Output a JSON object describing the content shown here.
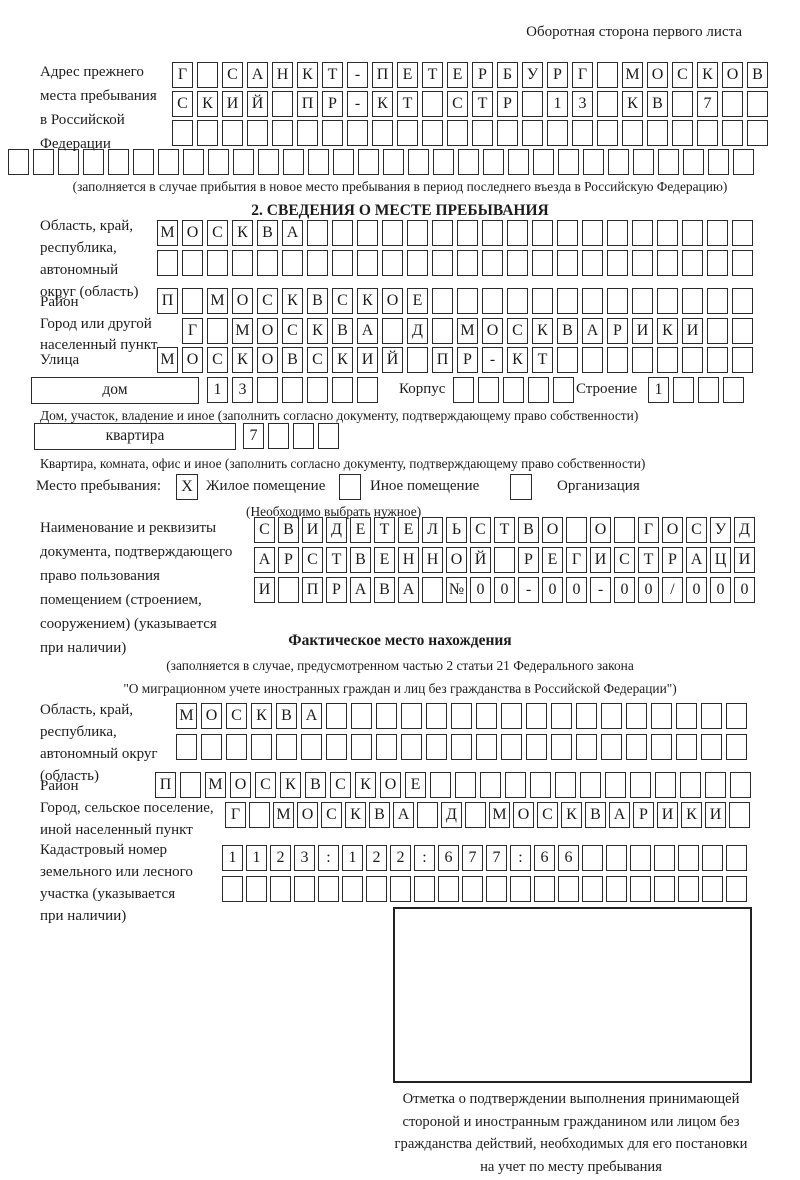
{
  "page": {
    "corner_title": "Оборотная сторона первого листа"
  },
  "prev_address": {
    "label_lines": [
      "Адрес прежнего",
      "места пребывания",
      "в Российской",
      "Федерации"
    ],
    "rows": [
      "Г САНКТ-ПЕТЕРБУРГ МОСКОВ",
      "СКИЙ ПР-КТ СТР 13 КВ 7  ",
      "                        ",
      "                              "
    ],
    "note": "(заполняется в случае прибытия в новое место пребывания в период последнего въезда в Российскую Федерацию)"
  },
  "section2": {
    "title": "2. СВЕДЕНИЯ О МЕСТЕ ПРЕБЫВАНИЯ",
    "oblast": {
      "label_lines": [
        "Область, край,",
        "республика,",
        "автономный",
        "округ (область)"
      ],
      "rows": [
        "МОСКВА                  ",
        "                        "
      ]
    },
    "raion": {
      "label": "Район",
      "row": "П МОСКВСКОЕ             "
    },
    "gorod": {
      "label_lines": [
        "Город или другой",
        "населенный пункт"
      ],
      "row": "Г МОСКВА Д МОСКВАРИКИ  "
    },
    "ulitsa": {
      "label": "Улица",
      "row": "МОСКОВСКИЙ ПР-КТ        "
    },
    "dom": {
      "label": "дом",
      "value": "13     ",
      "korpus_label": "Корпус",
      "korpus_value": "     ",
      "stroenie_label": "Строение",
      "stroenie_value": "1   ",
      "note": "Дом, участок, владение и иное (заполнить согласно документу, подтверждающему право собственности)"
    },
    "kvartira": {
      "label": "квартира",
      "value": "7   ",
      "note": "Квартира, комната, офис и иное (заполнить согласно документу, подтверждающему право собственности)"
    },
    "mesto": {
      "label": "Место пребывания:",
      "options": [
        {
          "label": "Жилое помещение",
          "mark": "X"
        },
        {
          "label": "Иное помещение",
          "mark": ""
        },
        {
          "label": "Организация",
          "mark": ""
        }
      ],
      "note": "(Необходимо выбрать нужное)"
    },
    "document_block": {
      "label_lines": [
        "Наименование и реквизиты",
        "документа, подтверждающего",
        "право пользования",
        "помещением (строением,",
        "сооружением) (указывается",
        "при наличии)"
      ],
      "rows": [
        "СВИДЕТЕЛЬСТВО О ГОСУД",
        "АРСТВЕННОЙ РЕГИСТРАЦИ",
        "И ПРАВА №00-00-00/000"
      ]
    }
  },
  "fact": {
    "title": "Фактическое место нахождения",
    "note_lines": [
      "(заполняется в случае, предусмотренном частью 2 статьи 21 Федерального закона",
      "\"О миграционном учете иностранных граждан и лиц без гражданства в Российской Федерации\")"
    ],
    "oblast": {
      "label_lines": [
        "Область, край,",
        "республика,",
        "автономный округ",
        "(область)"
      ],
      "rows": [
        "МОСКВА                 ",
        "                       "
      ]
    },
    "raion": {
      "label": "Район",
      "row": "П МОСКВСКОЕ             "
    },
    "gorod": {
      "label_lines": [
        "Город, сельское поселение,",
        "иной населенный пункт"
      ],
      "row": "Г МОСКВА Д МОСКВАРИКИ "
    },
    "kadastr": {
      "label_lines": [
        "Кадастровый номер",
        "земельного или лесного",
        "участка (указывается",
        "при наличии)"
      ],
      "rows": [
        "1123:122:677:66       ",
        "                      "
      ]
    },
    "otmetka_lines": [
      "Отметка о подтверждении выполнения принимающей",
      "стороной и иностранным гражданином или лицом без",
      "гражданства действий, необходимых для его постановки",
      "на учет по месту пребывания"
    ]
  }
}
